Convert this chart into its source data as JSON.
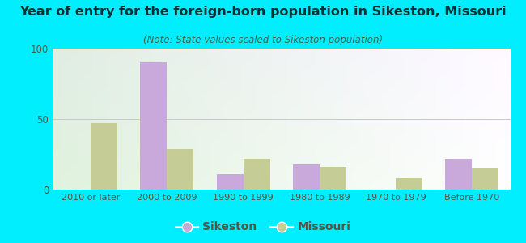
{
  "categories": [
    "2010 or later",
    "2000 to 2009",
    "1990 to 1999",
    "1980 to 1989",
    "1970 to 1979",
    "Before 1970"
  ],
  "sikeston_values": [
    0,
    90,
    11,
    18,
    0,
    22
  ],
  "missouri_values": [
    47,
    29,
    22,
    16,
    8,
    15
  ],
  "sikeston_color": "#c9a8dc",
  "missouri_color": "#c5cc96",
  "title": "Year of entry for the foreign-born population in Sikeston, Missouri",
  "subtitle": "(Note: State values scaled to Sikeston population)",
  "title_fontsize": 11.5,
  "subtitle_fontsize": 8.5,
  "ylim": [
    0,
    100
  ],
  "yticks": [
    0,
    50,
    100
  ],
  "background_outer": "#00eeff",
  "grid_color": "#ccccaa",
  "title_color": "#003333",
  "subtitle_color": "#336655",
  "tick_color": "#555544",
  "bar_width": 0.35,
  "legend_sikeston": "Sikeston",
  "legend_missouri": "Missouri"
}
